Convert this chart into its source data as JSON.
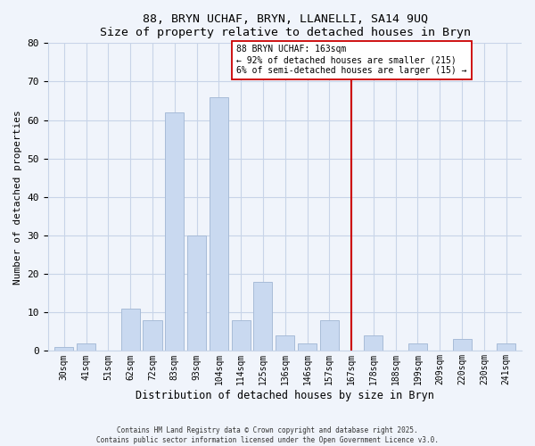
{
  "title": "88, BRYN UCHAF, BRYN, LLANELLI, SA14 9UQ",
  "subtitle": "Size of property relative to detached houses in Bryn",
  "xlabel": "Distribution of detached houses by size in Bryn",
  "ylabel": "Number of detached properties",
  "bar_labels": [
    "30sqm",
    "41sqm",
    "51sqm",
    "62sqm",
    "72sqm",
    "83sqm",
    "93sqm",
    "104sqm",
    "114sqm",
    "125sqm",
    "136sqm",
    "146sqm",
    "157sqm",
    "167sqm",
    "178sqm",
    "188sqm",
    "199sqm",
    "209sqm",
    "220sqm",
    "230sqm",
    "241sqm"
  ],
  "bar_values": [
    1,
    2,
    0,
    11,
    8,
    62,
    30,
    66,
    8,
    18,
    4,
    2,
    8,
    0,
    4,
    0,
    2,
    0,
    3,
    0,
    2
  ],
  "bar_color": "#c9d9f0",
  "bar_edge_color": "#a8bcd8",
  "vline_color": "#cc0000",
  "annotation_title": "88 BRYN UCHAF: 163sqm",
  "annotation_line1": "← 92% of detached houses are smaller (215)",
  "annotation_line2": "6% of semi-detached houses are larger (15) →",
  "annotation_box_color": "#ffffff",
  "annotation_box_edge": "#cc0000",
  "ylim": [
    0,
    80
  ],
  "yticks": [
    0,
    10,
    20,
    30,
    40,
    50,
    60,
    70,
    80
  ],
  "footer1": "Contains HM Land Registry data © Crown copyright and database right 2025.",
  "footer2": "Contains public sector information licensed under the Open Government Licence v3.0.",
  "background_color": "#f0f4fb",
  "grid_color": "#c8d4e8"
}
